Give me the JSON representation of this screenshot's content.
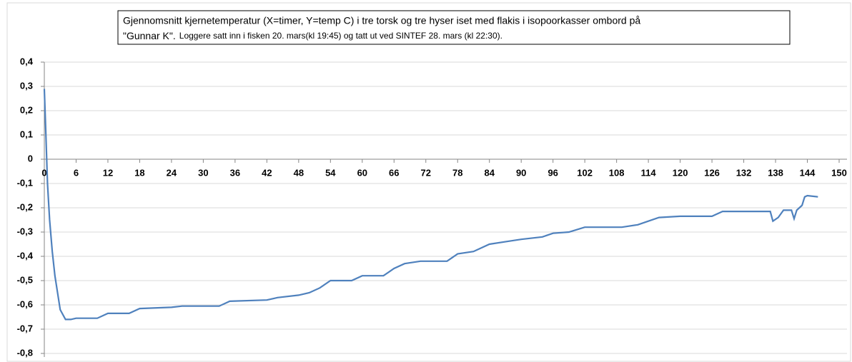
{
  "chart_data": {
    "type": "line",
    "title": "Gjennomsnitt kjernetemperatur (X=timer, Y=temp C) i tre torsk og tre hyser iset med flakis i isopoorkasser ombord på",
    "title_line2": "\"Gunnar K\".",
    "subtitle": "Loggere satt inn i fisken 20. mars(kl 19:45) og tatt ut ved SINTEF 28. mars (kl 22:30).",
    "xlim": [
      0,
      150
    ],
    "xticks": [
      0,
      6,
      12,
      18,
      24,
      30,
      36,
      42,
      48,
      54,
      60,
      66,
      72,
      78,
      84,
      90,
      96,
      102,
      108,
      114,
      120,
      126,
      132,
      138,
      144,
      150
    ],
    "ylim": [
      -0.8,
      0.4
    ],
    "yticks": [
      {
        "value": 0.4,
        "label": "0,4"
      },
      {
        "value": 0.3,
        "label": "0,3"
      },
      {
        "value": 0.2,
        "label": "0,2"
      },
      {
        "value": 0.1,
        "label": "0,1"
      },
      0,
      {
        "value": -0.1,
        "label": "-0,1"
      },
      {
        "value": -0.2,
        "label": "-0,2"
      },
      {
        "value": -0.3,
        "label": "-0,3"
      },
      {
        "value": -0.4,
        "label": "-0,4"
      },
      {
        "value": -0.5,
        "label": "-0,5"
      },
      {
        "value": -0.6,
        "label": "-0,6"
      },
      {
        "value": -0.7,
        "label": "-0,7"
      },
      {
        "value": -0.8,
        "label": "-0,8"
      }
    ],
    "grid": true,
    "series": [
      {
        "color": "#4f81bd",
        "x": [
          0,
          0.3,
          0.6,
          1,
          1.5,
          2,
          2.5,
          3,
          4,
          5,
          6,
          10,
          12,
          16,
          18,
          24,
          26,
          33,
          35,
          42,
          44,
          48,
          50,
          52,
          54,
          58,
          60,
          64,
          66,
          68,
          71,
          76,
          78,
          81,
          84,
          87,
          90,
          94,
          96,
          99,
          102,
          106,
          109,
          112,
          114,
          116,
          120,
          126,
          128,
          137,
          137.5,
          138.5,
          139.5,
          141,
          141.5,
          142,
          143,
          143.5,
          144,
          146
        ],
        "values": [
          0.29,
          0.1,
          -0.1,
          -0.25,
          -0.38,
          -0.48,
          -0.55,
          -0.62,
          -0.66,
          -0.66,
          -0.655,
          -0.655,
          -0.635,
          -0.635,
          -0.615,
          -0.61,
          -0.605,
          -0.605,
          -0.585,
          -0.58,
          -0.57,
          -0.56,
          -0.55,
          -0.53,
          -0.5,
          -0.5,
          -0.48,
          -0.48,
          -0.45,
          -0.43,
          -0.42,
          -0.42,
          -0.39,
          -0.38,
          -0.35,
          -0.34,
          -0.33,
          -0.32,
          -0.305,
          -0.3,
          -0.28,
          -0.28,
          -0.28,
          -0.27,
          -0.255,
          -0.24,
          -0.235,
          -0.235,
          -0.215,
          -0.215,
          -0.255,
          -0.24,
          -0.21,
          -0.21,
          -0.245,
          -0.21,
          -0.19,
          -0.155,
          -0.15,
          -0.155
        ]
      }
    ]
  }
}
